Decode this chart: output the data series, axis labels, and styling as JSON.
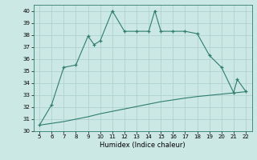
{
  "xlabel": "Humidex (Indice chaleur)",
  "x_main": [
    5,
    6,
    7,
    8,
    9,
    9.5,
    10,
    11,
    12,
    13,
    14,
    14.5,
    15,
    16,
    17,
    18,
    19,
    20,
    21,
    21.3,
    22
  ],
  "y_main": [
    30.5,
    32.2,
    35.3,
    35.5,
    37.9,
    37.2,
    37.5,
    40.0,
    38.3,
    38.3,
    38.3,
    40.0,
    38.3,
    38.3,
    38.3,
    38.1,
    36.3,
    35.3,
    33.2,
    34.3,
    33.3
  ],
  "x_line": [
    5,
    6,
    7,
    8,
    9,
    10,
    11,
    12,
    13,
    14,
    15,
    16,
    17,
    18,
    19,
    20,
    21,
    22
  ],
  "y_line": [
    30.5,
    30.65,
    30.8,
    31.0,
    31.2,
    31.45,
    31.65,
    31.85,
    32.05,
    32.25,
    32.45,
    32.6,
    32.75,
    32.88,
    32.98,
    33.08,
    33.18,
    33.28
  ],
  "xlim": [
    4.5,
    22.5
  ],
  "ylim": [
    30,
    40.5
  ],
  "yticks": [
    30,
    31,
    32,
    33,
    34,
    35,
    36,
    37,
    38,
    39,
    40
  ],
  "xticks": [
    5,
    6,
    7,
    8,
    9,
    10,
    11,
    12,
    13,
    14,
    15,
    16,
    17,
    18,
    19,
    20,
    21,
    22
  ],
  "line_color": "#2e7d6e",
  "bg_color": "#cce8e4",
  "grid_color": "#aacfcc"
}
